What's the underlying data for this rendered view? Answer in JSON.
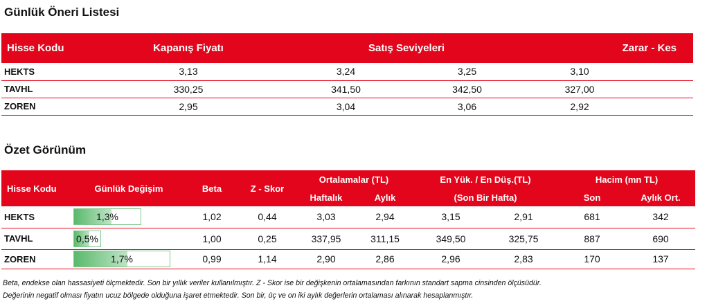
{
  "table1": {
    "title": "Günlük Öneri Listesi",
    "headers": {
      "code": "Hisse Kodu",
      "close": "Kapanış Fiyatı",
      "sell": "Satış Seviyeleri",
      "stop": "Zarar  - Kes"
    },
    "rows": [
      {
        "code": "HEKTS",
        "close": "3,13",
        "sell1": "3,24",
        "sell2": "3,25",
        "stop": "3,10"
      },
      {
        "code": "TAVHL",
        "close": "330,25",
        "sell1": "341,50",
        "sell2": "342,50",
        "stop": "327,00"
      },
      {
        "code": "ZOREN",
        "close": "2,95",
        "sell1": "3,04",
        "sell2": "3,06",
        "stop": "2,92"
      }
    ]
  },
  "table2": {
    "title": "Özet Görünüm",
    "headers": {
      "code": "Hisse Kodu",
      "daily_change": "Günlük Değişim",
      "beta": "Beta",
      "zscore": "Z - Skor",
      "averages": "Ortalamalar (TL)",
      "weekly": "Haftalık",
      "monthly": "Aylık",
      "high_low": "En Yük.  /  En Düş.(TL)",
      "last_week": "(Son Bir Hafta)",
      "volume": "Hacim (mn TL)",
      "last": "Son",
      "monthly_avg": "Aylık Ort."
    },
    "rows": [
      {
        "code": "HEKTS",
        "change": "1,3%",
        "change_fraction": 0.35,
        "beta": "1,02",
        "zscore": "0,44",
        "weekly": "3,03",
        "monthly": "2,94",
        "high": "3,15",
        "low": "2,91",
        "vol_last": "681",
        "vol_avg": "342"
      },
      {
        "code": "TAVHL",
        "change": "0,5%",
        "change_fraction": 0.09,
        "beta": "1,00",
        "zscore": "0,25",
        "weekly": "337,95",
        "monthly": "311,15",
        "high": "349,50",
        "low": "325,75",
        "vol_last": "887",
        "vol_avg": "690"
      },
      {
        "code": "ZOREN",
        "change": "1,7%",
        "change_fraction": 0.5,
        "beta": "0,99",
        "zscore": "1,14",
        "weekly": "2,90",
        "monthly": "2,86",
        "high": "2,96",
        "low": "2,83",
        "vol_last": "170",
        "vol_avg": "137"
      }
    ]
  },
  "footnote": {
    "line1": "Beta, endekse olan hassasiyeti ölçmektedir. Son bir yıllık veriler kullanılmıştır. Z - Skor ise bir değişkenin ortalamasından farkının standart sapma cinsinden ölçüsüdür.",
    "line2": "Değerinin negatif olması fiyatın ucuz bölgede olduğuna işaret etmektedir. Son bir, üç ve on iki aylık değerlerin ortalaması alınarak hesaplanmıştır."
  },
  "colors": {
    "header_red": "#e3051b",
    "bar_green": "#59b96c"
  }
}
